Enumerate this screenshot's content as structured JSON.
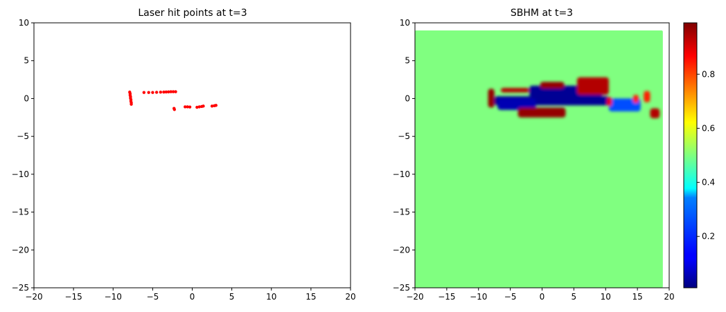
{
  "chart_data": [
    {
      "type": "scatter",
      "title": "Laser hit points at t=3",
      "xlim": [
        -20,
        20
      ],
      "ylim": [
        -25,
        10
      ],
      "xticks": [
        -20,
        -15,
        -10,
        -5,
        0,
        5,
        10,
        15,
        20
      ],
      "yticks": [
        10,
        5,
        0,
        -5,
        -10,
        -15,
        -20,
        -25
      ],
      "grid": false,
      "marker_color": "#ff0000",
      "points": [
        [
          -7.9,
          0.85
        ],
        [
          -7.85,
          0.65
        ],
        [
          -7.85,
          0.45
        ],
        [
          -7.8,
          0.25
        ],
        [
          -7.8,
          0.05
        ],
        [
          -7.75,
          -0.15
        ],
        [
          -7.75,
          -0.35
        ],
        [
          -7.7,
          -0.55
        ],
        [
          -7.7,
          -0.75
        ],
        [
          -6.1,
          0.8
        ],
        [
          -5.5,
          0.8
        ],
        [
          -5.0,
          0.8
        ],
        [
          -4.5,
          0.82
        ],
        [
          -4.0,
          0.84
        ],
        [
          -3.6,
          0.86
        ],
        [
          -3.3,
          0.87
        ],
        [
          -3.0,
          0.88
        ],
        [
          -2.7,
          0.9
        ],
        [
          -2.4,
          0.9
        ],
        [
          -2.1,
          0.9
        ],
        [
          -2.3,
          -1.3
        ],
        [
          -2.25,
          -1.45
        ],
        [
          -0.9,
          -1.1
        ],
        [
          -0.6,
          -1.1
        ],
        [
          -0.3,
          -1.12
        ],
        [
          0.6,
          -1.15
        ],
        [
          0.9,
          -1.1
        ],
        [
          1.2,
          -1.05
        ],
        [
          1.4,
          -1.0
        ],
        [
          2.5,
          -1.0
        ],
        [
          2.8,
          -0.95
        ],
        [
          3.0,
          -0.9
        ]
      ]
    },
    {
      "type": "heatmap",
      "title": "SBHM at t=3",
      "xlim": [
        -20,
        20
      ],
      "ylim": [
        -25,
        10
      ],
      "xticks": [
        -20,
        -15,
        -10,
        -5,
        0,
        5,
        10,
        15,
        20
      ],
      "yticks": [
        10,
        5,
        0,
        -5,
        -10,
        -15,
        -20,
        -25
      ],
      "grid": false,
      "colormap": "jet",
      "background_value": 0.5,
      "grid_extent": {
        "x": [
          -20,
          19
        ],
        "y": [
          -25,
          9
        ]
      },
      "colorbar": {
        "vmin": 0.01,
        "vmax": 0.99,
        "ticks": [
          0.2,
          0.4,
          0.6,
          0.8
        ]
      },
      "blobs": [
        {
          "x": [
            -7.5,
            10.5
          ],
          "y": [
            -0.9,
            0.3
          ],
          "value": 0.02
        },
        {
          "x": [
            -2.0,
            9.5
          ],
          "y": [
            0.2,
            1.7
          ],
          "value": 0.02
        },
        {
          "x": [
            -7.0,
            -1.0
          ],
          "y": [
            -1.5,
            0.0
          ],
          "value": 0.05
        },
        {
          "x": [
            10.5,
            15.5
          ],
          "y": [
            -1.7,
            0.0
          ],
          "value": 0.2
        },
        {
          "x": [
            -8.5,
            -7.5
          ],
          "y": [
            -1.2,
            1.3
          ],
          "value": 0.98
        },
        {
          "x": [
            -6.5,
            -2.0
          ],
          "y": [
            0.8,
            1.4
          ],
          "value": 0.95
        },
        {
          "x": [
            -0.3,
            3.5
          ],
          "y": [
            1.3,
            2.2
          ],
          "value": 0.98
        },
        {
          "x": [
            -3.8,
            3.7
          ],
          "y": [
            -2.5,
            -1.2
          ],
          "value": 0.98
        },
        {
          "x": [
            5.5,
            10.5
          ],
          "y": [
            0.5,
            2.8
          ],
          "value": 0.95
        },
        {
          "x": [
            10.2,
            11.0
          ],
          "y": [
            -1.0,
            0.2
          ],
          "value": 0.9
        },
        {
          "x": [
            14.3,
            15.2
          ],
          "y": [
            -0.6,
            0.5
          ],
          "value": 0.85
        },
        {
          "x": [
            16.0,
            17.0
          ],
          "y": [
            -0.5,
            1.0
          ],
          "value": 0.85
        },
        {
          "x": [
            17.0,
            18.5
          ],
          "y": [
            -2.6,
            -1.3
          ],
          "value": 0.95
        }
      ]
    }
  ]
}
